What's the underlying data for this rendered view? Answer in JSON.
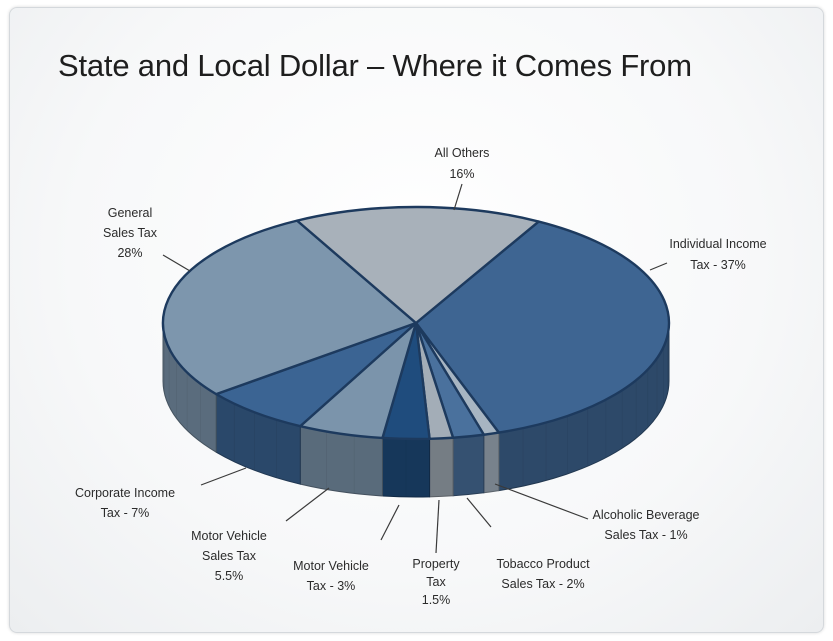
{
  "chart_data": {
    "type": "pie",
    "style": "3d",
    "title": "State and Local Dollar – Where it Comes From",
    "slices": [
      {
        "name": "Individual Income Tax",
        "value": 37,
        "label_lines": [
          "Individual Income",
          "Tax - 37%"
        ],
        "color": "#3e6592"
      },
      {
        "name": "Alcoholic Beverage Sales Tax",
        "value": 1,
        "label_lines": [
          "Alcoholic Beverage",
          "Sales Tax - 1%"
        ],
        "color": "#a7b5c2"
      },
      {
        "name": "Tobacco Product Sales Tax",
        "value": 2,
        "label_lines": [
          "Tobacco Product",
          "Sales Tax - 2%"
        ],
        "color": "#4a719d"
      },
      {
        "name": "Property Tax",
        "value": 1.5,
        "label_lines": [
          "Property",
          "Tax",
          "1.5%"
        ],
        "color": "#a3adb7"
      },
      {
        "name": "Motor Vehicle Tax",
        "value": 3,
        "label_lines": [
          "Motor Vehicle",
          "Tax - 3%"
        ],
        "color": "#1f4c7d"
      },
      {
        "name": "Motor Vehicle Sales Tax",
        "value": 5.5,
        "label_lines": [
          "Motor Vehicle",
          "Sales Tax",
          "5.5%"
        ],
        "color": "#7b94ab"
      },
      {
        "name": "Corporate Income Tax",
        "value": 7,
        "label_lines": [
          "Corporate Income",
          "Tax - 7%"
        ],
        "color": "#3b6493"
      },
      {
        "name": "General Sales Tax",
        "value": 28,
        "label_lines": [
          "General",
          "Sales Tax",
          "28%"
        ],
        "color": "#7d96ad"
      },
      {
        "name": "All Others",
        "value": 16,
        "label_lines": [
          "All Others",
          "16%"
        ],
        "color": "#a8b1ba"
      }
    ],
    "legend": "none"
  }
}
